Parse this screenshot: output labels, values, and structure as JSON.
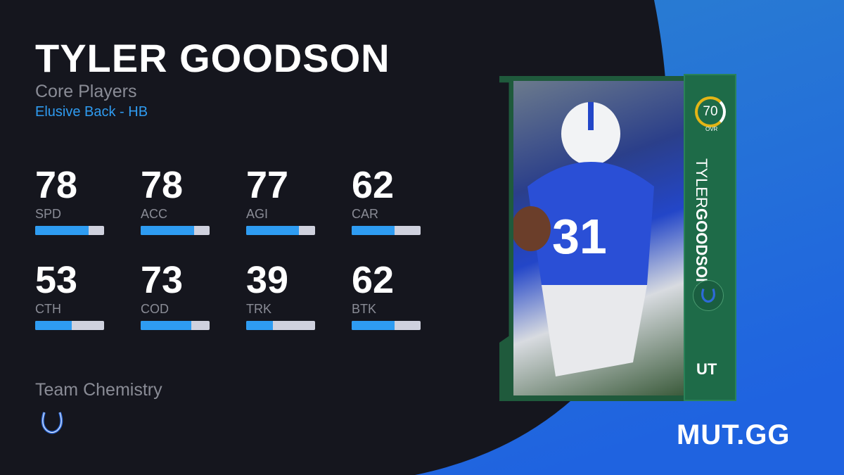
{
  "player": {
    "name": "TYLER GOODSON",
    "first_name": "TYLER",
    "last_name": "GOODSON",
    "program": "Core Players",
    "archetype": "Elusive Back - HB"
  },
  "stats": [
    {
      "label": "SPD",
      "value": 78
    },
    {
      "label": "ACC",
      "value": 78
    },
    {
      "label": "AGI",
      "value": 77
    },
    {
      "label": "CAR",
      "value": 62
    },
    {
      "label": "CTH",
      "value": 53
    },
    {
      "label": "COD",
      "value": 73
    },
    {
      "label": "TRK",
      "value": 39
    },
    {
      "label": "BTK",
      "value": 62
    }
  ],
  "chemistry": {
    "label": "Team Chemistry",
    "icon": "horseshoe-icon"
  },
  "card": {
    "ovr": "70",
    "ovr_label": "OVR",
    "badge": "UT",
    "team_icon": "horseshoe-icon",
    "jersey": "31"
  },
  "brand": {
    "logo": "MUT.GG"
  },
  "colors": {
    "accent": "#2e9cf2",
    "background": "#15161e",
    "card_green": "#1e6b48",
    "ovr_ring": "#e3b516"
  }
}
